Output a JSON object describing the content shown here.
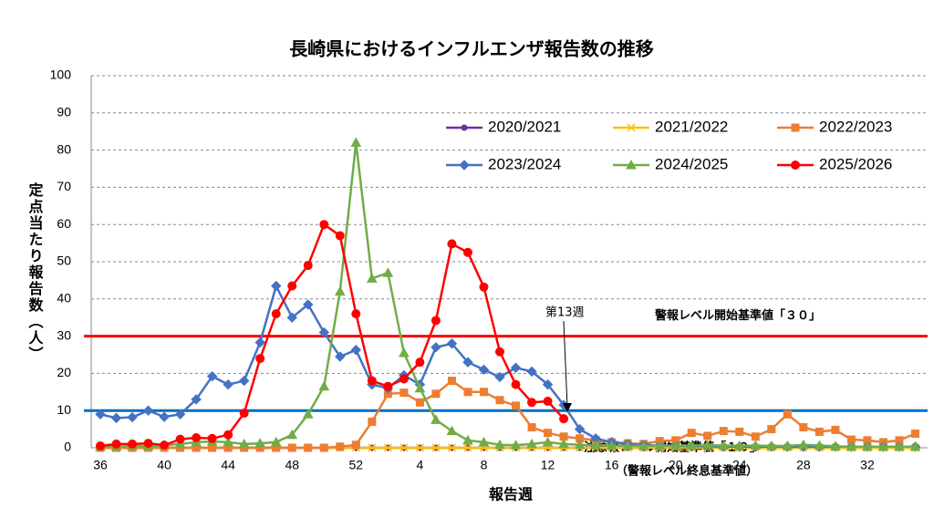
{
  "chart_data": {
    "type": "line",
    "title": "長崎県におけるインフルエンザ報告数の推移",
    "xlabel": "報告週",
    "ylabel": "定点当たり報告数（人）",
    "categories": [
      36,
      null,
      null,
      null,
      40,
      null,
      null,
      null,
      44,
      null,
      null,
      null,
      48,
      null,
      null,
      null,
      52,
      null,
      null,
      null,
      4,
      null,
      null,
      null,
      8,
      null,
      null,
      null,
      12,
      null,
      null,
      null,
      16,
      null,
      null,
      null,
      20,
      null,
      null,
      null,
      24,
      null,
      null,
      null,
      28,
      null,
      null,
      null,
      32,
      null,
      null,
      null
    ],
    "ylim": [
      0,
      100
    ],
    "yticks": [
      0,
      10,
      20,
      30,
      40,
      50,
      60,
      70,
      80,
      90,
      100
    ],
    "grid": true,
    "series": [
      {
        "name": "2020/2021",
        "color": "#7030a0",
        "marker": "circle",
        "values": [
          0,
          0,
          0,
          0,
          0,
          0,
          0,
          0,
          0,
          0,
          0,
          0,
          0,
          0,
          0,
          0,
          0,
          0,
          0,
          0,
          0,
          0,
          0,
          0,
          0,
          0,
          0,
          0,
          0,
          0,
          0,
          0,
          0,
          0,
          0,
          0,
          0,
          0,
          0,
          0,
          0,
          0,
          0,
          0,
          0,
          0,
          0,
          0,
          0,
          0,
          0,
          0
        ]
      },
      {
        "name": "2021/2022",
        "color": "#ffc000",
        "marker": "x",
        "values": [
          0,
          0,
          0,
          0,
          0,
          0,
          0,
          0,
          0,
          0,
          0,
          0,
          0,
          0,
          0,
          0,
          0,
          0,
          0,
          0,
          0,
          0,
          0,
          0,
          0,
          0,
          0,
          0,
          0,
          0,
          0,
          0,
          0,
          0,
          0,
          0,
          0,
          0,
          0,
          0,
          0,
          0,
          0,
          0,
          0,
          0,
          0,
          0,
          0,
          0,
          0,
          0
        ]
      },
      {
        "name": "2022/2023",
        "color": "#ed7d31",
        "marker": "square",
        "values": [
          0,
          0,
          0,
          0,
          0,
          0,
          0,
          0,
          0,
          0,
          0,
          0,
          0,
          0,
          0,
          0.3,
          0.8,
          7,
          14.5,
          14.8,
          12.2,
          14.5,
          18,
          15,
          15,
          12.8,
          11.3,
          5.5,
          4,
          3,
          2.5,
          2,
          1.5,
          1.2,
          1,
          1.8,
          2,
          4,
          3.2,
          4.5,
          4.3,
          3,
          5,
          9,
          5.5,
          4.3,
          4.8,
          2.2,
          2,
          1.5,
          2,
          3.8
        ]
      },
      {
        "name": "2023/2024",
        "color": "#4472c4",
        "marker": "diamond",
        "values": [
          9,
          8,
          8.2,
          10,
          8.3,
          9,
          13,
          19.2,
          17,
          18,
          28.3,
          43.5,
          35,
          38.5,
          31,
          24.5,
          26.3,
          17,
          16,
          19.5,
          17,
          27,
          28,
          23,
          21,
          19,
          21.5,
          20.5,
          17,
          11.5,
          5,
          2.5,
          1.5,
          1,
          0.8,
          0.5,
          0.5,
          0.4,
          0.4,
          0.3,
          0.3,
          0.3,
          0.3,
          0.3,
          0.3,
          0.3,
          0.3,
          0.3,
          0.3,
          0.3,
          0.3,
          0.3
        ]
      },
      {
        "name": "2024/2025",
        "color": "#70ad47",
        "marker": "triangle",
        "values": [
          0.3,
          0.3,
          0.5,
          0.5,
          0.7,
          1,
          1.5,
          1.7,
          1.5,
          1,
          1.2,
          1.5,
          3.5,
          9,
          16.5,
          42,
          82,
          45.5,
          47,
          25.5,
          16,
          7.5,
          4.5,
          2,
          1.5,
          0.8,
          0.7,
          1,
          1.5,
          1,
          0.8,
          0.7,
          0.6,
          0.5,
          0.5,
          0.5,
          0.5,
          0.6,
          0.7,
          0.6,
          0.5,
          0.6,
          0.5,
          0.5,
          0.8,
          0.6,
          0.4,
          0.3,
          0.3,
          0.3,
          0.3,
          0.3
        ]
      },
      {
        "name": "2025/2026",
        "color": "#ff0000",
        "marker": "circle",
        "values": [
          0.5,
          1,
          1,
          1.2,
          0.7,
          2.3,
          2.7,
          2.5,
          3.5,
          9.3,
          24,
          36,
          43.5,
          49,
          60,
          57,
          36,
          18,
          16.5,
          18.5,
          23,
          34.2,
          54.8,
          52.5,
          43.2,
          25.8,
          17,
          12.2,
          12.5,
          7.8,
          null,
          null,
          null,
          null,
          null,
          null,
          null,
          null,
          null,
          null,
          null,
          null,
          null,
          null,
          null,
          null,
          null,
          null,
          null,
          null,
          null,
          null
        ]
      }
    ],
    "reference_lines": [
      {
        "value": 30,
        "color": "#ff0000",
        "label": "警報レベル開始基準値「３０」"
      },
      {
        "value": 10,
        "color": "#0070c0",
        "label": "注意報レベル開始基準値「１０」",
        "sublabel": "（警報レベル終息基準値）"
      }
    ],
    "annotation": "第13週"
  }
}
